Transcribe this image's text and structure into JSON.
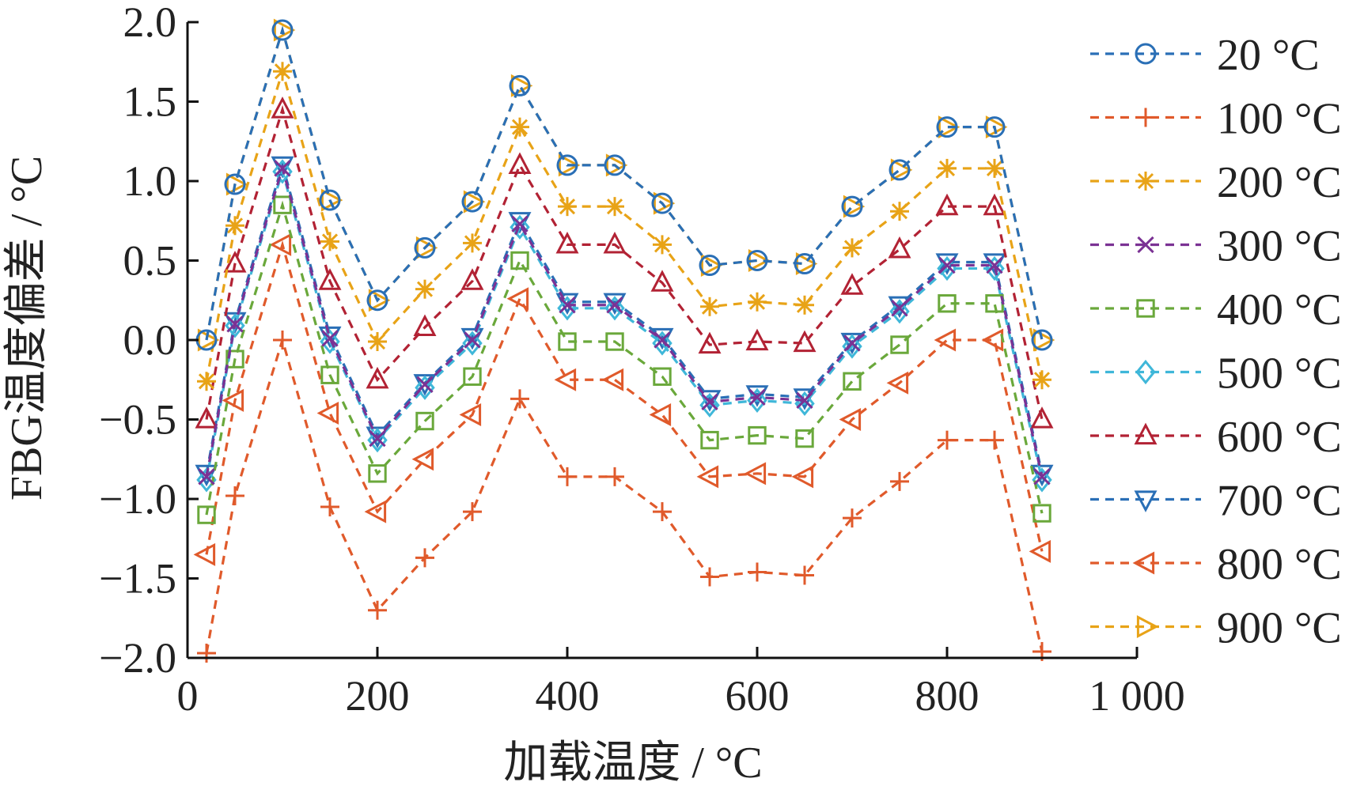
{
  "chart_data": {
    "type": "line",
    "xlabel": "加载温度 / °C",
    "ylabel": "FBG温度偏差 / °C",
    "xlim": [
      0,
      1000
    ],
    "ylim": [
      -2.0,
      2.0
    ],
    "xticks": [
      0,
      200,
      400,
      600,
      800,
      1000
    ],
    "xtick_labels": [
      "0",
      "200",
      "400",
      "600",
      "800",
      "1 000"
    ],
    "yticks": [
      2.0,
      1.5,
      1.0,
      0.5,
      0.0,
      -0.5,
      -1.0,
      -1.5,
      -2.0
    ],
    "ytick_labels": [
      "2.0",
      "1.5",
      "1.0",
      "0.5",
      "0.0",
      "−0.5",
      "−1.0",
      "−1.5",
      "−2.0"
    ],
    "grid": false,
    "legend_position": "right",
    "x": [
      20,
      50,
      100,
      150,
      200,
      250,
      300,
      350,
      400,
      450,
      500,
      550,
      600,
      650,
      700,
      750,
      800,
      850,
      900
    ],
    "series": [
      {
        "name": "20 °C",
        "color": "#2a6fb6",
        "marker": "circle",
        "values": [
          0.0,
          0.98,
          1.95,
          0.88,
          0.25,
          0.58,
          0.87,
          1.6,
          1.1,
          1.1,
          0.86,
          0.47,
          0.5,
          0.48,
          0.84,
          1.07,
          1.34,
          1.34,
          0.0
        ]
      },
      {
        "name": "100 °C",
        "color": "#e05a2b",
        "marker": "plus",
        "values": [
          -1.97,
          -0.98,
          0.0,
          -1.05,
          -1.7,
          -1.37,
          -1.08,
          -0.37,
          -0.86,
          -0.86,
          -1.08,
          -1.49,
          -1.46,
          -1.48,
          -1.12,
          -0.89,
          -0.63,
          -0.63,
          -1.96
        ]
      },
      {
        "name": "200 °C",
        "color": "#e8a317",
        "marker": "asterisk",
        "values": [
          -0.26,
          0.72,
          1.69,
          0.62,
          -0.01,
          0.32,
          0.61,
          1.34,
          0.84,
          0.84,
          0.6,
          0.21,
          0.24,
          0.22,
          0.58,
          0.81,
          1.08,
          1.08,
          -0.25
        ]
      },
      {
        "name": "300 °C",
        "color": "#7b3294",
        "marker": "x",
        "values": [
          -0.86,
          0.1,
          1.08,
          0.01,
          -0.62,
          -0.28,
          0.0,
          0.73,
          0.22,
          0.22,
          0.0,
          -0.39,
          -0.36,
          -0.38,
          -0.02,
          0.2,
          0.47,
          0.47,
          -0.86
        ]
      },
      {
        "name": "400 °C",
        "color": "#6aa83b",
        "marker": "square",
        "values": [
          -1.1,
          -0.12,
          0.85,
          -0.22,
          -0.84,
          -0.51,
          -0.23,
          0.5,
          -0.01,
          -0.01,
          -0.23,
          -0.63,
          -0.6,
          -0.62,
          -0.26,
          -0.03,
          0.23,
          0.23,
          -1.09
        ]
      },
      {
        "name": "500 °C",
        "color": "#3fb7d9",
        "marker": "diamond",
        "values": [
          -0.88,
          0.09,
          1.06,
          -0.01,
          -0.63,
          -0.3,
          -0.02,
          0.71,
          0.2,
          0.2,
          -0.02,
          -0.41,
          -0.38,
          -0.4,
          -0.04,
          0.18,
          0.45,
          0.45,
          -0.88
        ]
      },
      {
        "name": "600 °C",
        "color": "#b22234",
        "marker": "triangle-up",
        "values": [
          -0.5,
          0.48,
          1.45,
          0.37,
          -0.25,
          0.08,
          0.37,
          1.1,
          0.6,
          0.6,
          0.36,
          -0.03,
          -0.01,
          -0.02,
          0.34,
          0.57,
          0.84,
          0.84,
          -0.5
        ]
      },
      {
        "name": "700 °C",
        "color": "#2a6fb6",
        "marker": "triangle-down",
        "values": [
          -0.84,
          0.12,
          1.1,
          0.03,
          -0.6,
          -0.27,
          0.02,
          0.75,
          0.24,
          0.24,
          0.02,
          -0.37,
          -0.34,
          -0.36,
          -0.01,
          0.22,
          0.49,
          0.49,
          -0.84
        ]
      },
      {
        "name": "800 °C",
        "color": "#e05a2b",
        "marker": "triangle-left",
        "values": [
          -1.35,
          -0.38,
          0.6,
          -0.46,
          -1.08,
          -0.75,
          -0.47,
          0.26,
          -0.25,
          -0.25,
          -0.47,
          -0.86,
          -0.84,
          -0.86,
          -0.5,
          -0.27,
          0.0,
          0.0,
          -1.33
        ]
      },
      {
        "name": "900 °C",
        "color": "#e8a317",
        "marker": "triangle-right",
        "values": [
          0.0,
          0.98,
          1.95,
          0.88,
          0.25,
          0.58,
          0.87,
          1.6,
          1.1,
          1.1,
          0.86,
          0.47,
          0.5,
          0.48,
          0.84,
          1.07,
          1.34,
          1.34,
          0.0
        ]
      }
    ]
  }
}
